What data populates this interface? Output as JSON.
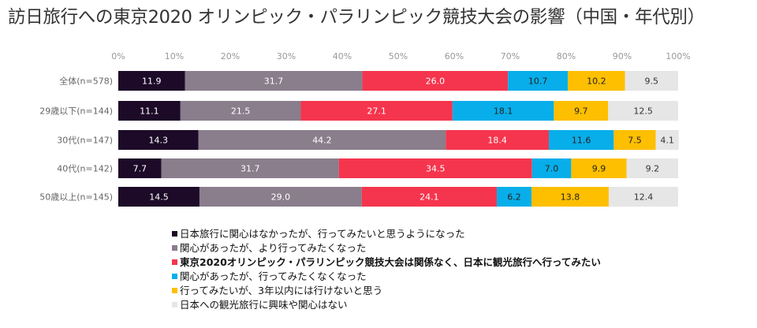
{
  "title": "訪日旅行への東京2020 オリンピック・パラリンピック競技大会の影響（中国・年代別）",
  "chart_data": {
    "type": "bar",
    "orientation": "horizontal",
    "stacked": true,
    "percent_stacked": true,
    "title": "訪日旅行への東京2020 オリンピック・パラリンピック競技大会の影響（中国・年代別）",
    "xlim": [
      0,
      100
    ],
    "x_ticks": [
      "0%",
      "10%",
      "20%",
      "30%",
      "40%",
      "50%",
      "60%",
      "70%",
      "80%",
      "90%",
      "100%"
    ],
    "grid": false,
    "legend_position": "bottom",
    "categories": [
      "全体(n=578)",
      "29歳以下(n=144)",
      "30代(n=147)",
      "40代(n=142)",
      "50歳以上(n=145)"
    ],
    "series": [
      {
        "name": "日本旅行に関心はなかったが、行ってみたいと思うようになった",
        "color": "#1c0a28",
        "label_color": "#ffffff",
        "values": [
          11.9,
          11.1,
          14.3,
          7.7,
          14.5
        ]
      },
      {
        "name": "関心があったが、より行ってみたくなった",
        "color": "#8a7d8c",
        "label_color": "#ffffff",
        "values": [
          31.7,
          21.5,
          44.2,
          31.7,
          29.0
        ]
      },
      {
        "name": "東京2020オリンピック・パラリンピック競技大会は関係なく、日本に観光旅行へ行ってみたい",
        "color": "#f5354d",
        "label_color": "#ffffff",
        "values": [
          26.0,
          27.1,
          18.4,
          34.5,
          24.1
        ]
      },
      {
        "name": "関心があったが、行ってみたくなくなった",
        "color": "#07aee9",
        "label_color": "#222222",
        "values": [
          10.7,
          18.1,
          11.6,
          7.0,
          6.2
        ]
      },
      {
        "name": "行ってみたいが、3年以内には行けないと思う",
        "color": "#fdbf00",
        "label_color": "#222222",
        "values": [
          10.2,
          9.7,
          7.5,
          9.9,
          13.8
        ]
      },
      {
        "name": "日本への観光旅行に興味や関心はない",
        "color": "#e6e6e6",
        "label_color": "#333333",
        "values": [
          9.5,
          12.5,
          4.1,
          9.2,
          12.4
        ]
      }
    ],
    "value_labels": [
      [
        "11.9",
        "11.1",
        "14.3",
        "7.7",
        "14.5"
      ],
      [
        "31.7",
        "21.5",
        "44.2",
        "31.7",
        "29.0"
      ],
      [
        "26.0",
        "27.1",
        "18.4",
        "34.5",
        "24.1"
      ],
      [
        "10.7",
        "18.1",
        "11.6",
        "7.0",
        "6.2"
      ],
      [
        "10.2",
        "9.7",
        "7.5",
        "9.9",
        "13.8"
      ],
      [
        "9.5",
        "12.5",
        "4.1",
        "9.2",
        "12.4"
      ]
    ]
  }
}
